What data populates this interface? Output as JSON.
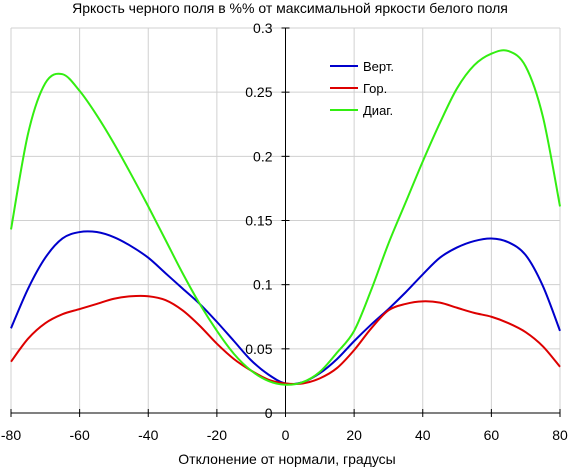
{
  "chart_data": {
    "type": "line",
    "title": "Яркость черного поля в %% от максимальной яркости белого поля",
    "xlabel": "Отклонение от нормали, градусы",
    "ylabel": "",
    "xlim": [
      -80,
      80
    ],
    "ylim": [
      0,
      0.3
    ],
    "x_ticks": [
      "-80",
      "-60",
      "-40",
      "-20",
      "0",
      "20",
      "40",
      "60",
      "80"
    ],
    "y_ticks": [
      "0",
      "0.05",
      "0.1",
      "0.15",
      "0.2",
      "0.25",
      "0.3"
    ],
    "grid": true,
    "legend_position": "top-right",
    "series": [
      {
        "name": "Верт.",
        "color": "#0000cc",
        "x": [
          -80,
          -75,
          -70,
          -65,
          -60,
          -55,
          -50,
          -45,
          -40,
          -35,
          -30,
          -25,
          -20,
          -15,
          -10,
          -5,
          0,
          5,
          10,
          15,
          20,
          25,
          30,
          35,
          40,
          45,
          50,
          55,
          60,
          65,
          70,
          75,
          80
        ],
        "y": [
          0.066,
          0.097,
          0.121,
          0.136,
          0.141,
          0.141,
          0.137,
          0.13,
          0.121,
          0.109,
          0.097,
          0.085,
          0.071,
          0.056,
          0.041,
          0.03,
          0.023,
          0.024,
          0.031,
          0.042,
          0.056,
          0.069,
          0.081,
          0.094,
          0.108,
          0.121,
          0.129,
          0.134,
          0.136,
          0.133,
          0.123,
          0.099,
          0.064
        ]
      },
      {
        "name": "Гор.",
        "color": "#dd0000",
        "x": [
          -80,
          -75,
          -70,
          -65,
          -60,
          -55,
          -50,
          -45,
          -40,
          -35,
          -30,
          -25,
          -20,
          -15,
          -10,
          -5,
          0,
          5,
          10,
          15,
          20,
          25,
          30,
          35,
          40,
          45,
          50,
          55,
          60,
          65,
          70,
          75,
          80
        ],
        "y": [
          0.04,
          0.058,
          0.07,
          0.077,
          0.081,
          0.085,
          0.089,
          0.091,
          0.091,
          0.088,
          0.08,
          0.068,
          0.054,
          0.042,
          0.033,
          0.026,
          0.023,
          0.023,
          0.027,
          0.035,
          0.049,
          0.066,
          0.08,
          0.085,
          0.087,
          0.086,
          0.082,
          0.078,
          0.075,
          0.07,
          0.063,
          0.052,
          0.036
        ]
      },
      {
        "name": "Диаг.",
        "color": "#33ee11",
        "x": [
          -80,
          -75,
          -70,
          -65,
          -60,
          -55,
          -50,
          -45,
          -40,
          -35,
          -30,
          -25,
          -20,
          -15,
          -10,
          -5,
          0,
          5,
          10,
          15,
          20,
          25,
          30,
          35,
          40,
          45,
          50,
          55,
          60,
          65,
          70,
          75,
          80
        ],
        "y": [
          0.143,
          0.218,
          0.257,
          0.264,
          0.251,
          0.232,
          0.21,
          0.186,
          0.161,
          0.135,
          0.109,
          0.085,
          0.064,
          0.046,
          0.033,
          0.025,
          0.022,
          0.024,
          0.032,
          0.047,
          0.064,
          0.096,
          0.132,
          0.164,
          0.196,
          0.226,
          0.253,
          0.271,
          0.28,
          0.282,
          0.27,
          0.231,
          0.161
        ]
      }
    ]
  }
}
